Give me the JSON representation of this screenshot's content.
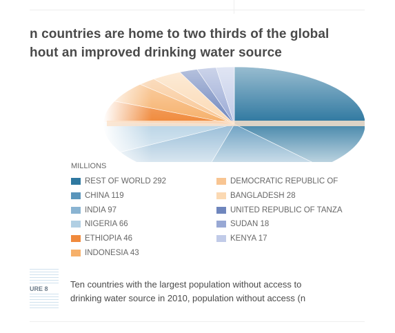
{
  "title": {
    "line1": "n countries are home to two thirds of the global",
    "line2": "hout an improved drinking water source"
  },
  "chart_data": {
    "type": "pie",
    "title": "n countries are home to two thirds of the global hout an improved drinking water source",
    "unit_label": "MILLIONS",
    "categories": [
      "REST OF WORLD",
      "CHINA",
      "INDIA",
      "NIGERIA",
      "ETHIOPIA",
      "INDONESIA",
      "DEMOCRATIC REPUBLIC OF",
      "BANGLADESH",
      "UNITED REPUBLIC OF TANZA",
      "SUDAN",
      "KENYA"
    ],
    "values": [
      292,
      119,
      97,
      66,
      46,
      43,
      null,
      28,
      null,
      18,
      17
    ],
    "legend_labels": [
      "REST OF WORLD 292",
      "CHINA 119",
      "INDIA 97",
      "NIGERIA 66",
      "ETHIOPIA 46",
      "INDONESIA 43",
      "DEMOCRATIC REPUBLIC OF",
      "BANGLADESH 28",
      "UNITED REPUBLIC OF TANZA",
      "SUDAN 18",
      "KENYA 17"
    ],
    "colors": [
      "#2f78a0",
      "#5a95bb",
      "#8ab4d2",
      "#b1cfe3",
      "#f08a3c",
      "#f6b06a",
      "#f8c592",
      "#fbd9b3",
      "#6f86bd",
      "#98a8d4",
      "#c1cbe8"
    ],
    "legend_placement": "bottom"
  },
  "figure": {
    "label": "URE 8",
    "caption_line1": "Ten countries with the largest population without access to",
    "caption_line2": "drinking water source in 2010, population without access (n"
  }
}
